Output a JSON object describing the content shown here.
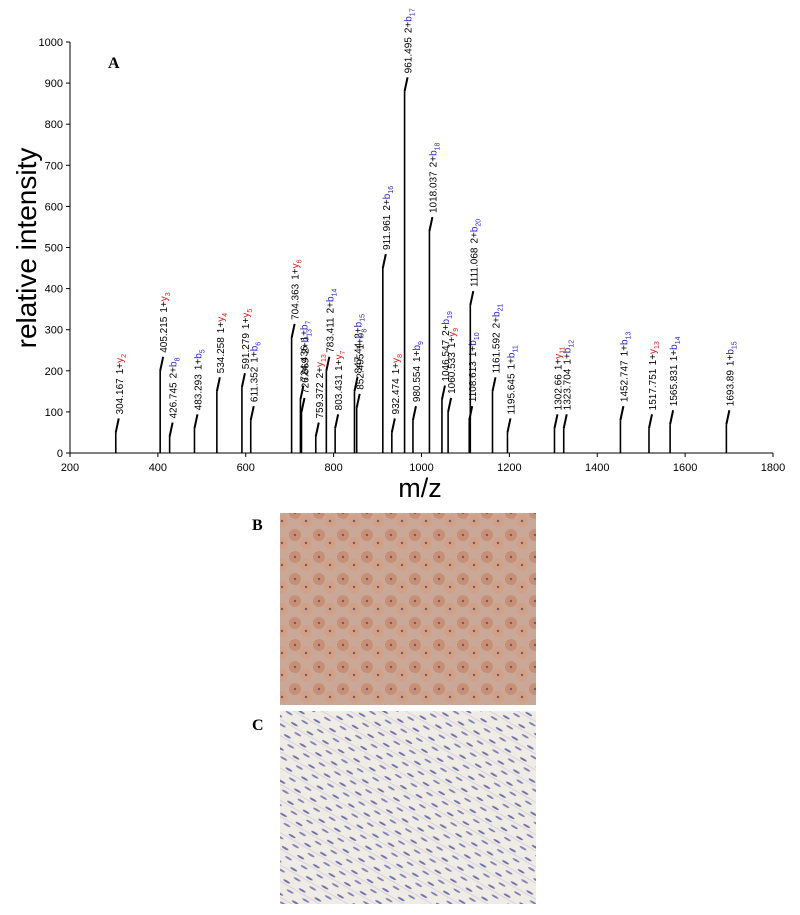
{
  "panel_labels": [
    "A",
    "B",
    "C"
  ],
  "chart_data": {
    "type": "stick",
    "xlabel": "m/z",
    "ylabel": "relative intensity",
    "xlim": [
      200,
      1800
    ],
    "xticks": [
      200,
      400,
      600,
      800,
      1000,
      1200,
      1400,
      1600,
      1800
    ],
    "ylim": [
      0,
      1000
    ],
    "yticks": [
      0,
      100,
      200,
      300,
      400,
      500,
      600,
      700,
      800,
      900,
      1000
    ],
    "color": "#000000",
    "ion_colors": {
      "y": "#e02020",
      "b": "#2a2ac8"
    },
    "peaks": [
      {
        "mz": 304.167,
        "charge": "1+",
        "ion": "y",
        "ion_no": "2",
        "intensity": 50
      },
      {
        "mz": 405.215,
        "charge": "1+",
        "ion": "y",
        "ion_no": "3",
        "intensity": 200
      },
      {
        "mz": 426.745,
        "charge": "2+",
        "ion": "b",
        "ion_no": "8",
        "intensity": 40
      },
      {
        "mz": 483.293,
        "charge": "1+",
        "ion": "b",
        "ion_no": "5",
        "intensity": 60
      },
      {
        "mz": 534.258,
        "charge": "1+",
        "ion": "y",
        "ion_no": "4",
        "intensity": 150
      },
      {
        "mz": 591.279,
        "charge": "1+",
        "ion": "y",
        "ion_no": "5",
        "intensity": 160
      },
      {
        "mz": 611.352,
        "charge": "1+",
        "ion": "b",
        "ion_no": "6",
        "intensity": 80
      },
      {
        "mz": 704.363,
        "charge": "1+",
        "ion": "y",
        "ion_no": "6",
        "intensity": 280
      },
      {
        "mz": 724.436,
        "charge": "1+",
        "ion": "b",
        "ion_no": "7",
        "intensity": 130
      },
      {
        "mz": 726.869,
        "charge": "2+",
        "ion": "b",
        "ion_no": "13",
        "intensity": 100
      },
      {
        "mz": 759.372,
        "charge": "2+",
        "ion": "y",
        "ion_no": "13",
        "intensity": 40
      },
      {
        "mz": 783.411,
        "charge": "2+",
        "ion": "b",
        "ion_no": "14",
        "intensity": 200
      },
      {
        "mz": 803.431,
        "charge": "1+",
        "ion": "y",
        "ion_no": "7",
        "intensity": 60
      },
      {
        "mz": 847.44,
        "charge": "2+",
        "ion": "b",
        "ion_no": "15",
        "intensity": 150
      },
      {
        "mz": 852.495,
        "charge": "1+",
        "ion": "b",
        "ion_no": "8",
        "intensity": 110
      },
      {
        "mz": 911.961,
        "charge": "2+",
        "ion": "b",
        "ion_no": "16",
        "intensity": 450
      },
      {
        "mz": 932.474,
        "charge": "1+",
        "ion": "y",
        "ion_no": "8",
        "intensity": 50
      },
      {
        "mz": 961.495,
        "charge": "2+",
        "ion": "b",
        "ion_no": "17",
        "intensity": 880
      },
      {
        "mz": 980.554,
        "charge": "1+",
        "ion": "b",
        "ion_no": "9",
        "intensity": 80
      },
      {
        "mz": 1018.037,
        "charge": "2+",
        "ion": "b",
        "ion_no": "18",
        "intensity": 540
      },
      {
        "mz": 1046.547,
        "charge": "2+",
        "ion": "b",
        "ion_no": "19",
        "intensity": 130
      },
      {
        "mz": 1060.533,
        "charge": "1+",
        "ion": "y",
        "ion_no": "9",
        "intensity": 100
      },
      {
        "mz": 1108.613,
        "charge": "1+",
        "ion": "b",
        "ion_no": "10",
        "intensity": 80
      },
      {
        "mz": 1111.068,
        "charge": "2+",
        "ion": "b",
        "ion_no": "20",
        "intensity": 360
      },
      {
        "mz": 1161.592,
        "charge": "2+",
        "ion": "b",
        "ion_no": "21",
        "intensity": 150
      },
      {
        "mz": 1195.645,
        "charge": "1+",
        "ion": "b",
        "ion_no": "11",
        "intensity": 50
      },
      {
        "mz": 1302.66,
        "charge": "1+",
        "ion": "y",
        "ion_no": "11",
        "intensity": 60
      },
      {
        "mz": 1323.704,
        "charge": "1+",
        "ion": "b",
        "ion_no": "12",
        "intensity": 60
      },
      {
        "mz": 1452.747,
        "charge": "1+",
        "ion": "b",
        "ion_no": "13",
        "intensity": 80
      },
      {
        "mz": 1517.751,
        "charge": "1+",
        "ion": "y",
        "ion_no": "13",
        "intensity": 60
      },
      {
        "mz": 1565.831,
        "charge": "1+",
        "ion": "b",
        "ion_no": "14",
        "intensity": 70
      },
      {
        "mz": 1693.89,
        "charge": "1+",
        "ion": "b",
        "ion_no": "15",
        "intensity": 70
      }
    ]
  }
}
